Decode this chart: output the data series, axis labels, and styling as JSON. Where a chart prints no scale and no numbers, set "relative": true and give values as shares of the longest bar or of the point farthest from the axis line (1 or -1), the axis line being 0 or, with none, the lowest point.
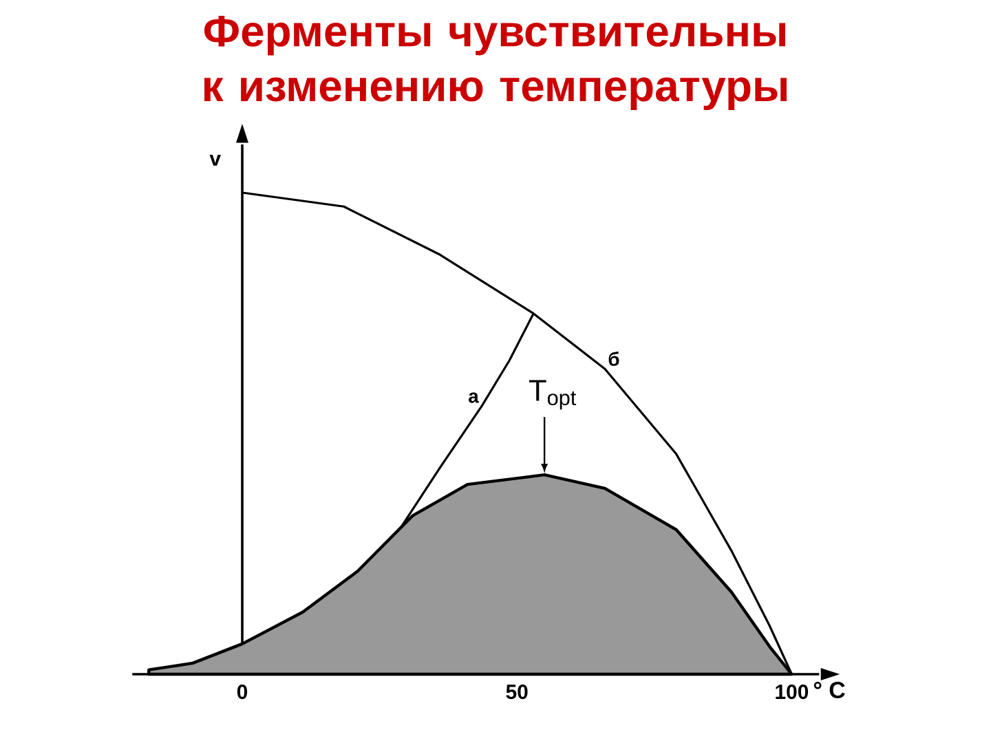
{
  "chart_data": {
    "type": "line",
    "title": "Ферменты чувствительны к изменению температуры",
    "xlabel": "° C",
    "ylabel": "v",
    "relative": true,
    "xlim": [
      -20,
      105
    ],
    "xticks": [
      0,
      50,
      100
    ],
    "series": [
      {
        "name": "б",
        "color": "#000000",
        "x": [
          0,
          18.5,
          36,
          53,
          66,
          79,
          89,
          96,
          100
        ],
        "values": [
          1.0,
          0.971,
          0.871,
          0.749,
          0.634,
          0.457,
          0.257,
          0.1,
          0
        ]
      },
      {
        "name": "а",
        "color": "#000000",
        "x": [
          28.6,
          36,
          43.6,
          48.6,
          53
        ],
        "values": [
          0.3,
          0.429,
          0.557,
          0.651,
          0.749
        ]
      },
      {
        "type": "area",
        "color": "#000000",
        "x": [
          -17,
          -9,
          0,
          11,
          21,
          31,
          41,
          55,
          66,
          79,
          89,
          96,
          100
        ],
        "values": [
          0.009,
          0.023,
          0.063,
          0.129,
          0.214,
          0.329,
          0.394,
          0.414,
          0.386,
          0.3,
          0.171,
          0.057,
          0
        ]
      }
    ],
    "annotations": [
      {
        "text": "T$_{opt}$",
        "x": 55,
        "y": 0.414
      }
    ]
  }
}
